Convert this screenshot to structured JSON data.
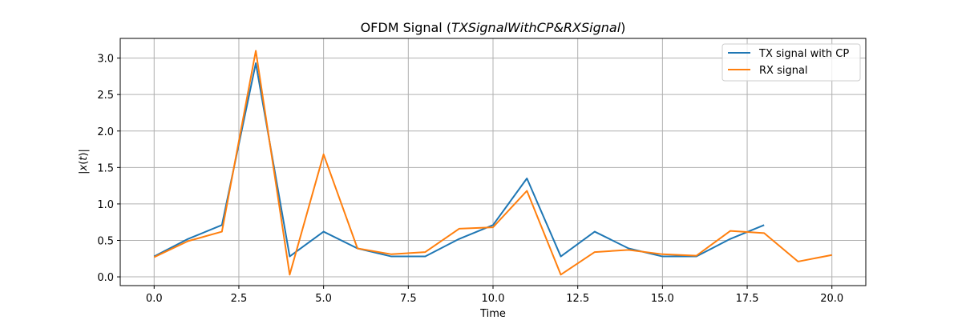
{
  "chart_data": {
    "type": "line",
    "title_prefix": "OFDM Signal (",
    "title_math": "TXSignalWithCP&RXSignal",
    "title_suffix": ")",
    "xlabel": "Time",
    "ylabel_prefix": "|",
    "ylabel_x": "x",
    "ylabel_open": "(",
    "ylabel_t": "t",
    "ylabel_close": ")",
    "ylabel_suffix": "|",
    "xlim": [
      -1.0,
      21.0
    ],
    "ylim": [
      -0.12,
      3.27
    ],
    "xticks": [
      "0.0",
      "2.5",
      "5.0",
      "7.5",
      "10.0",
      "12.5",
      "15.0",
      "17.5",
      "20.0"
    ],
    "yticks": [
      "0.0",
      "0.5",
      "1.0",
      "1.5",
      "2.0",
      "2.5",
      "3.0"
    ],
    "grid": true,
    "legend_position": "top-right",
    "series": [
      {
        "name": "TX signal with CP",
        "color": "#1f77b4",
        "x": [
          0,
          1,
          2,
          3,
          4,
          5,
          6,
          7,
          8,
          9,
          10,
          11,
          12,
          13,
          14,
          15,
          16,
          17,
          18
        ],
        "y": [
          0.28,
          0.52,
          0.71,
          2.93,
          0.28,
          0.62,
          0.39,
          0.28,
          0.28,
          0.52,
          0.71,
          1.35,
          0.28,
          0.62,
          0.39,
          0.28,
          0.28,
          0.52,
          0.71
        ]
      },
      {
        "name": "RX signal",
        "color": "#ff7f0e",
        "x": [
          0,
          1,
          2,
          3,
          4,
          5,
          6,
          7,
          8,
          9,
          10,
          11,
          12,
          13,
          14,
          15,
          16,
          17,
          18,
          19,
          20
        ],
        "y": [
          0.27,
          0.49,
          0.62,
          3.1,
          0.03,
          1.68,
          0.39,
          0.31,
          0.34,
          0.66,
          0.68,
          1.18,
          0.03,
          0.34,
          0.37,
          0.31,
          0.29,
          0.63,
          0.6,
          0.21,
          0.3
        ]
      }
    ]
  }
}
